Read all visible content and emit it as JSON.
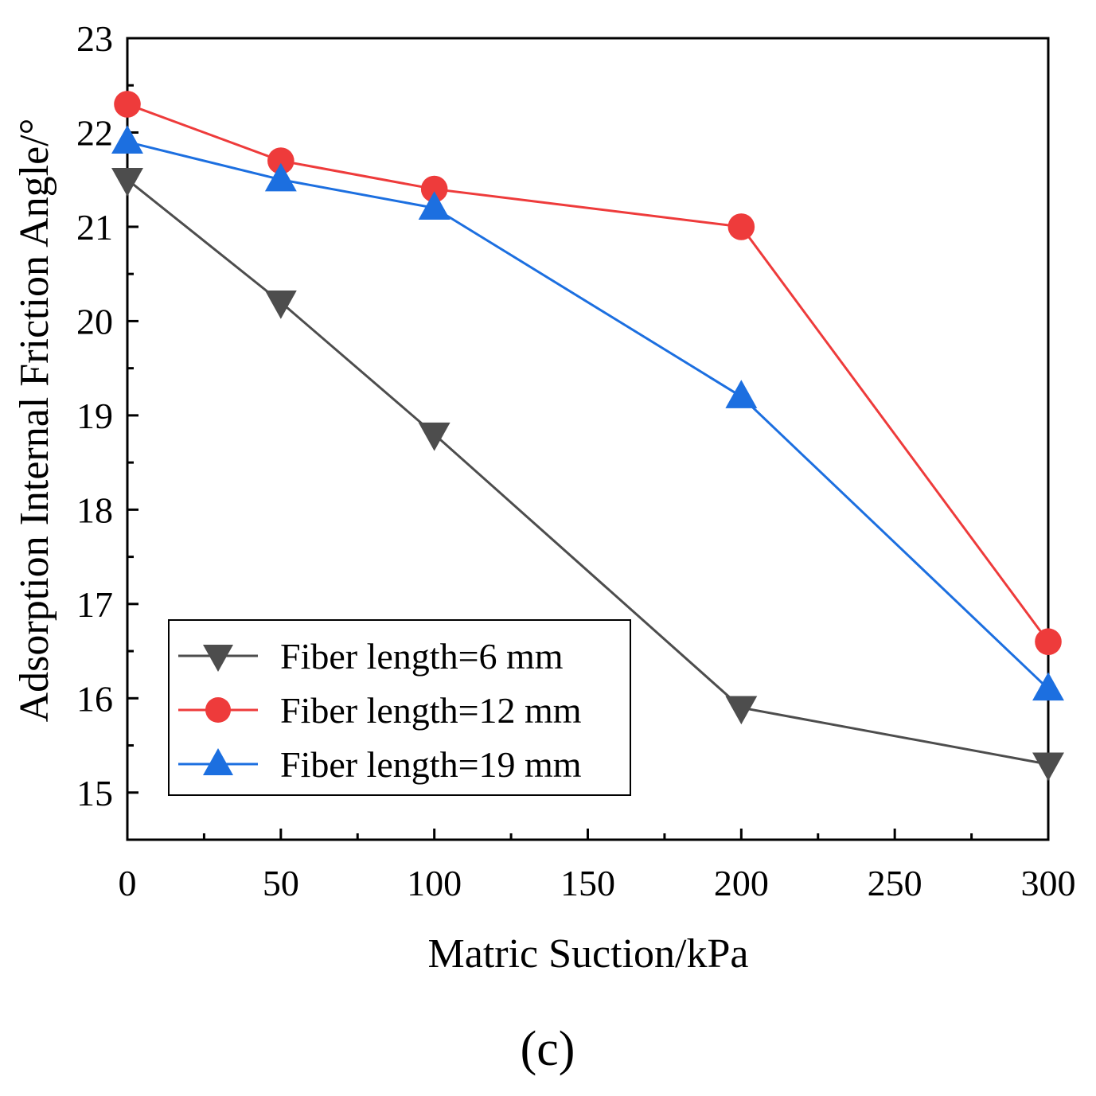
{
  "panel_label": "(c)",
  "chart_data": {
    "type": "line",
    "title": "",
    "xlabel": "Matric Suction/kPa",
    "ylabel": "Adsorption Internal Friction Angle/°",
    "xlim": [
      0,
      300
    ],
    "ylim": [
      14.5,
      23
    ],
    "xticks": [
      0,
      50,
      100,
      150,
      200,
      250,
      300
    ],
    "yticks": [
      15,
      16,
      17,
      18,
      19,
      20,
      21,
      22,
      23
    ],
    "x": [
      0,
      50,
      100,
      200,
      300
    ],
    "grid": false,
    "legend_position": "bottom-left",
    "series": [
      {
        "name": "Fiber length=6 mm",
        "marker": "triangle-down",
        "color": "#4d4d4d",
        "values": [
          21.5,
          20.2,
          18.8,
          15.9,
          15.3
        ]
      },
      {
        "name": "Fiber length=12 mm",
        "marker": "circle",
        "color": "#ee3b3b",
        "values": [
          22.3,
          21.7,
          21.4,
          21.0,
          16.6
        ]
      },
      {
        "name": "Fiber length=19 mm",
        "marker": "triangle-up",
        "color": "#1c6fe0",
        "values": [
          21.9,
          21.5,
          21.2,
          19.2,
          16.1
        ]
      }
    ]
  }
}
